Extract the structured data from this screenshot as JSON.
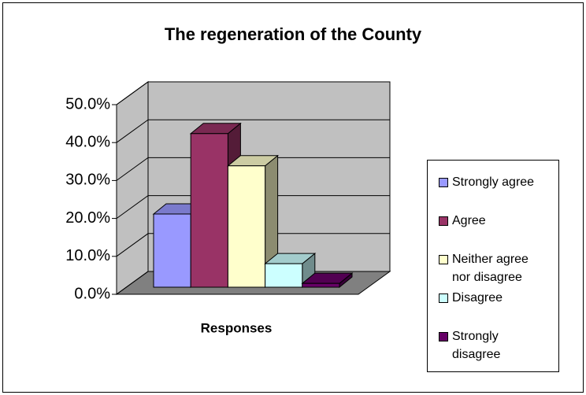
{
  "chart_data": {
    "type": "bar3d",
    "title": "The regeneration of the County",
    "x_label": "Responses",
    "categories": [
      null
    ],
    "series": [
      {
        "name": "Strongly agree",
        "color": "#9999ff",
        "values": [
          19.3
        ]
      },
      {
        "name": "Agree",
        "color": "#993366",
        "values": [
          40.5
        ]
      },
      {
        "name": "Neither agree nor disagree",
        "color": "#ffffcc",
        "values": [
          32.0
        ]
      },
      {
        "name": "Disagree",
        "color": "#ccffff",
        "values": [
          6.2
        ]
      },
      {
        "name": "Strongly disagree",
        "color": "#660066",
        "values": [
          1.0
        ]
      }
    ],
    "ylim": [
      0,
      50
    ],
    "yticks": [
      {
        "value": 0,
        "label": "0.0%"
      },
      {
        "value": 10,
        "label": "10.0%"
      },
      {
        "value": 20,
        "label": "20.0%"
      },
      {
        "value": 30,
        "label": "30.0%"
      },
      {
        "value": 40,
        "label": "40.0%"
      },
      {
        "value": 50,
        "label": "50.0%"
      }
    ],
    "grid": true,
    "legend": "right"
  }
}
